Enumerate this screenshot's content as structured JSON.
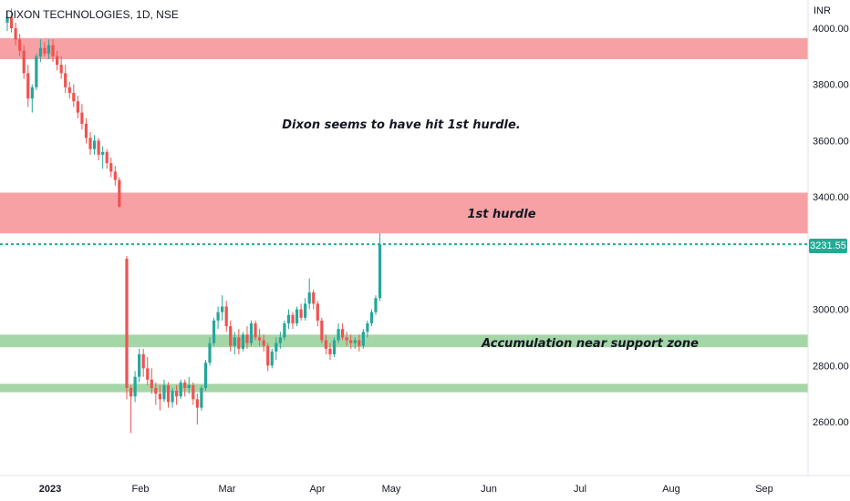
{
  "header": {
    "title": "DIXON TECHNOLOGIES, 1D, NSE",
    "currency": "INR"
  },
  "last_price_label": "3231.55",
  "colors": {
    "up": "#26a69a",
    "down": "#ef5350",
    "resistance_zone": "#f7a1a5",
    "support_zone": "#a5d6a7",
    "last_price_line": "#22ab94",
    "axis_text": "#131722"
  },
  "chart_data": {
    "type": "candlestick",
    "title": "DIXON TECHNOLOGIES, 1D, NSE",
    "ylim": [
      2420,
      4030
    ],
    "y_ticks": [
      2600,
      2800,
      3000,
      3200,
      3400,
      3600,
      3800,
      4000
    ],
    "y_tick_labels": [
      "2600.00",
      "2800.00",
      "3000.00",
      "3200.00",
      "3400.00",
      "3600.00",
      "3800.00",
      "4000.00"
    ],
    "x_tick_labels": [
      "2023",
      "Feb",
      "Mar",
      "Apr",
      "May",
      "Jun",
      "Jul",
      "Aug",
      "Sep"
    ],
    "last_price": 3231.55,
    "zones": [
      {
        "kind": "resistance",
        "from": 3890,
        "to": 3965
      },
      {
        "kind": "resistance",
        "from": 3270,
        "to": 3415,
        "label": "1st hurdle"
      },
      {
        "kind": "support",
        "from": 2865,
        "to": 2910,
        "label": "Accumulation near support zone"
      },
      {
        "kind": "support",
        "from": 2705,
        "to": 2735
      }
    ],
    "annotations": [
      "Dixon seems to have hit 1st hurdle."
    ],
    "candles_first_x": 8,
    "candles_step_x": 4.55,
    "candles": [
      [
        4020,
        4060,
        3990,
        4040
      ],
      [
        4040,
        4070,
        3985,
        4000
      ],
      [
        4000,
        4020,
        3940,
        3960
      ],
      [
        3960,
        3980,
        3900,
        3920
      ],
      [
        3920,
        3940,
        3820,
        3840
      ],
      [
        3840,
        3870,
        3720,
        3750
      ],
      [
        3750,
        3800,
        3700,
        3790
      ],
      [
        3790,
        3910,
        3780,
        3900
      ],
      [
        3900,
        3960,
        3880,
        3930
      ],
      [
        3930,
        3950,
        3900,
        3910
      ],
      [
        3910,
        3960,
        3890,
        3940
      ],
      [
        3940,
        3960,
        3880,
        3900
      ],
      [
        3900,
        3920,
        3850,
        3870
      ],
      [
        3870,
        3900,
        3820,
        3840
      ],
      [
        3840,
        3870,
        3770,
        3790
      ],
      [
        3790,
        3810,
        3750,
        3770
      ],
      [
        3770,
        3800,
        3720,
        3740
      ],
      [
        3740,
        3760,
        3680,
        3700
      ],
      [
        3700,
        3730,
        3640,
        3660
      ],
      [
        3660,
        3680,
        3590,
        3610
      ],
      [
        3610,
        3630,
        3550,
        3570
      ],
      [
        3570,
        3620,
        3550,
        3600
      ],
      [
        3600,
        3610,
        3530,
        3550
      ],
      [
        3550,
        3580,
        3500,
        3560
      ],
      [
        3560,
        3570,
        3500,
        3520
      ],
      [
        3520,
        3540,
        3470,
        3490
      ],
      [
        3490,
        3510,
        3440,
        3460
      ],
      [
        3460,
        3470,
        3360,
        3365
      ],
      [
        3180,
        3190,
        2680,
        2720
      ],
      [
        2720,
        2730,
        2560,
        2690
      ],
      [
        2690,
        2780,
        2670,
        2760
      ],
      [
        2760,
        2860,
        2740,
        2840
      ],
      [
        2840,
        2860,
        2760,
        2790
      ],
      [
        2790,
        2830,
        2730,
        2750
      ],
      [
        2750,
        2790,
        2700,
        2720
      ],
      [
        2720,
        2740,
        2660,
        2700
      ],
      [
        2700,
        2730,
        2640,
        2680
      ],
      [
        2680,
        2750,
        2670,
        2730
      ],
      [
        2730,
        2740,
        2650,
        2670
      ],
      [
        2670,
        2720,
        2650,
        2710
      ],
      [
        2710,
        2730,
        2660,
        2690
      ],
      [
        2690,
        2750,
        2680,
        2740
      ],
      [
        2740,
        2750,
        2690,
        2720
      ],
      [
        2720,
        2760,
        2700,
        2730
      ],
      [
        2730,
        2740,
        2660,
        2680
      ],
      [
        2680,
        2700,
        2590,
        2650
      ],
      [
        2650,
        2730,
        2640,
        2720
      ],
      [
        2720,
        2820,
        2710,
        2810
      ],
      [
        2810,
        2900,
        2800,
        2880
      ],
      [
        2880,
        2970,
        2870,
        2960
      ],
      [
        2960,
        3010,
        2930,
        2990
      ],
      [
        2990,
        3050,
        2960,
        3010
      ],
      [
        3010,
        3030,
        2920,
        2940
      ],
      [
        2940,
        2960,
        2850,
        2870
      ],
      [
        2870,
        2920,
        2840,
        2900
      ],
      [
        2900,
        2930,
        2840,
        2860
      ],
      [
        2860,
        2920,
        2850,
        2910
      ],
      [
        2910,
        2940,
        2860,
        2880
      ],
      [
        2880,
        2960,
        2870,
        2950
      ],
      [
        2950,
        2960,
        2890,
        2900
      ],
      [
        2900,
        2930,
        2870,
        2890
      ],
      [
        2890,
        2910,
        2850,
        2870
      ],
      [
        2870,
        2880,
        2780,
        2800
      ],
      [
        2800,
        2860,
        2790,
        2850
      ],
      [
        2850,
        2900,
        2820,
        2880
      ],
      [
        2880,
        2920,
        2860,
        2900
      ],
      [
        2900,
        2960,
        2890,
        2950
      ],
      [
        2950,
        3000,
        2930,
        2980
      ],
      [
        2980,
        2990,
        2930,
        2950
      ],
      [
        2950,
        3010,
        2940,
        3000
      ],
      [
        3000,
        3020,
        2960,
        2970
      ],
      [
        2970,
        3040,
        2960,
        3020
      ],
      [
        3020,
        3110,
        3000,
        3060
      ],
      [
        3060,
        3070,
        3000,
        3020
      ],
      [
        3020,
        3030,
        2940,
        2960
      ],
      [
        2960,
        2970,
        2880,
        2890
      ],
      [
        2890,
        2910,
        2840,
        2860
      ],
      [
        2860,
        2880,
        2820,
        2840
      ],
      [
        2840,
        2900,
        2830,
        2890
      ],
      [
        2890,
        2950,
        2880,
        2930
      ],
      [
        2930,
        2950,
        2890,
        2900
      ],
      [
        2900,
        2920,
        2870,
        2890
      ],
      [
        2890,
        2910,
        2860,
        2880
      ],
      [
        2880,
        2900,
        2860,
        2890
      ],
      [
        2890,
        2910,
        2850,
        2870
      ],
      [
        2870,
        2930,
        2860,
        2920
      ],
      [
        2920,
        2960,
        2900,
        2950
      ],
      [
        2950,
        3000,
        2940,
        2990
      ],
      [
        2990,
        3050,
        2980,
        3040
      ],
      [
        3040,
        3270,
        3030,
        3231.55
      ]
    ],
    "candle_positions_note": "January block then gap",
    "gap_after_index": 27,
    "gap_x_start": 139
  }
}
